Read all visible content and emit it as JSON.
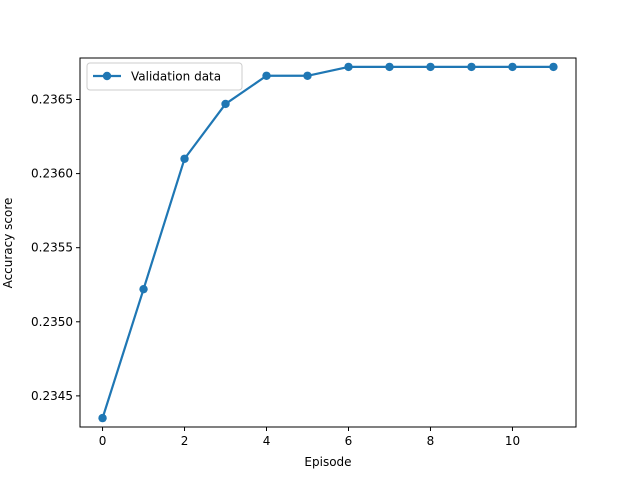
{
  "chart_data": {
    "type": "line",
    "title": "",
    "xlabel": "Episode",
    "ylabel": "Accuracy score",
    "xlim": [
      -0.55,
      11.55
    ],
    "ylim": [
      0.23429,
      0.23678
    ],
    "xticks": [
      0,
      2,
      4,
      6,
      8,
      10
    ],
    "xtick_labels": [
      "0",
      "2",
      "4",
      "6",
      "8",
      "10"
    ],
    "yticks": [
      0.2345,
      0.235,
      0.2355,
      0.236,
      0.2365
    ],
    "ytick_labels": [
      "0.2345",
      "0.2350",
      "0.2355",
      "0.2360",
      "0.2365"
    ],
    "grid": false,
    "legend_position": "upper-left",
    "series": [
      {
        "name": "Validation data",
        "color": "#1f77b4",
        "marker": "circle",
        "x": [
          0,
          1,
          2,
          3,
          4,
          5,
          6,
          7,
          8,
          9,
          10,
          11
        ],
        "y": [
          0.23435,
          0.23522,
          0.2361,
          0.23647,
          0.23666,
          0.23666,
          0.23672,
          0.23672,
          0.23672,
          0.23672,
          0.23672,
          0.23672
        ]
      }
    ]
  }
}
